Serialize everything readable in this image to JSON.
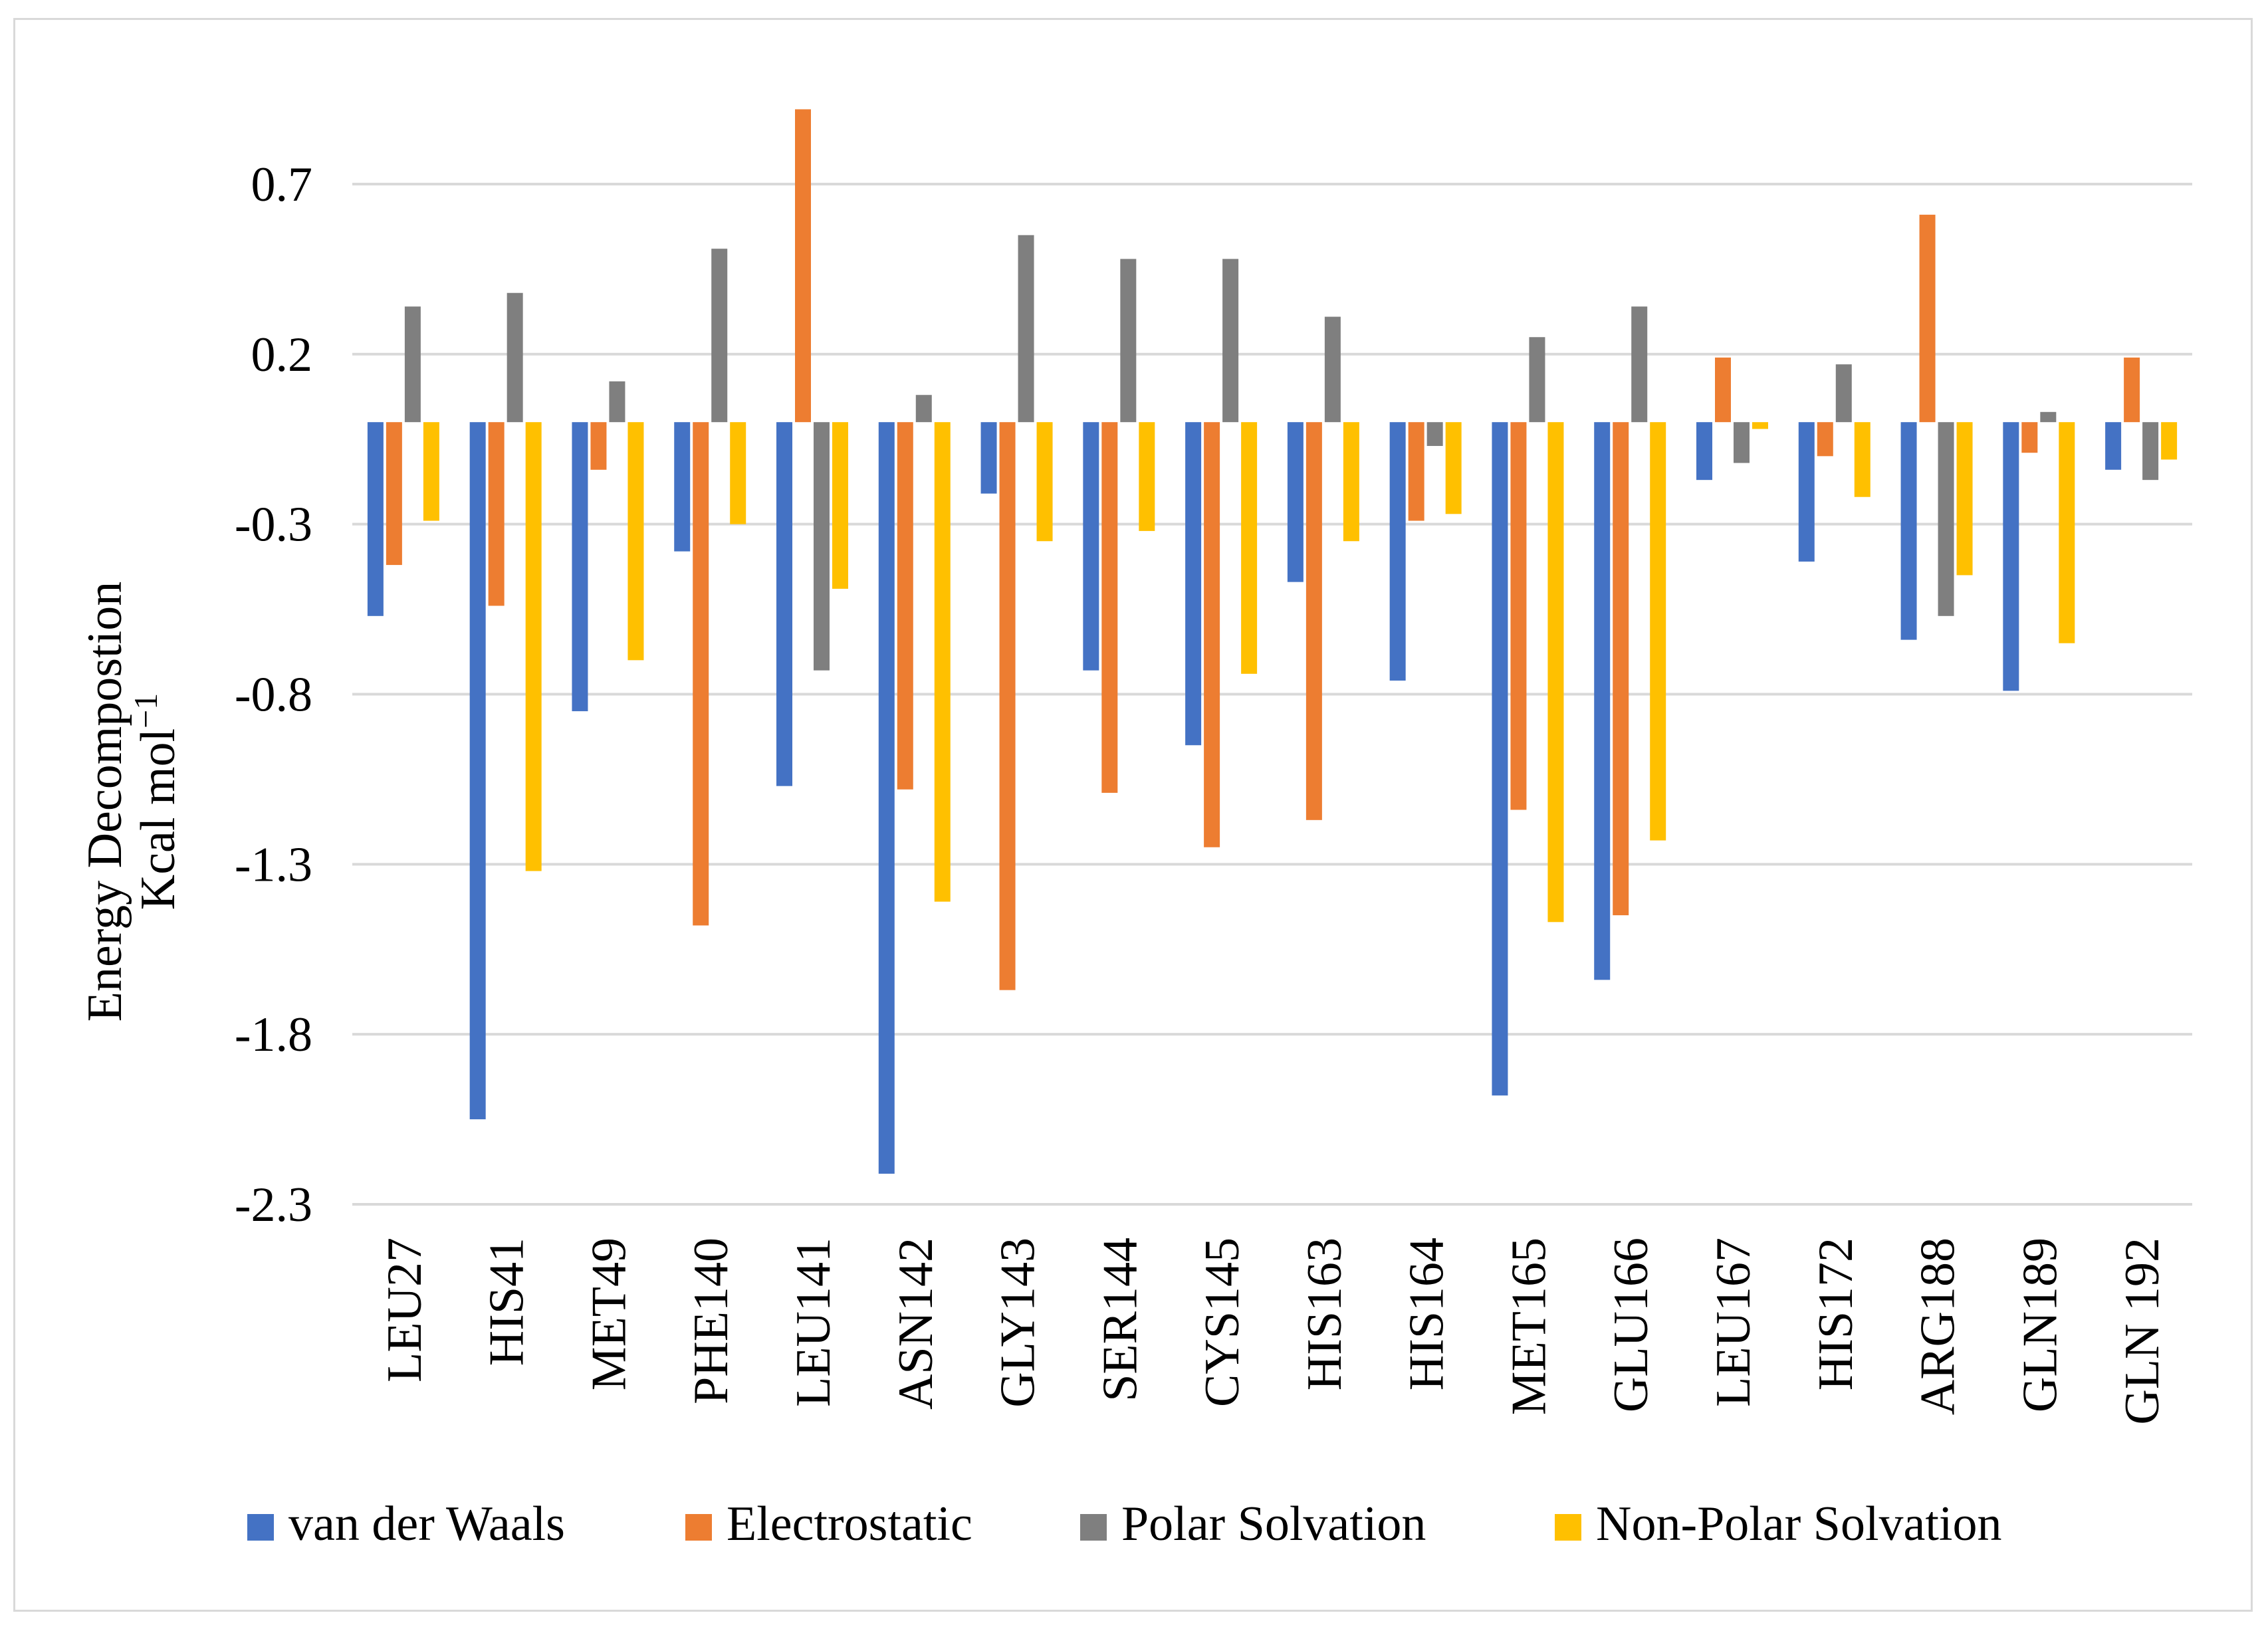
{
  "chart_data": {
    "type": "bar",
    "ylabel_line1": "Energy Decompostion",
    "ylabel_line2": "Kcal mol",
    "ylabel_sup": "−1",
    "ylim": [
      -2.3,
      1.0
    ],
    "yticks": [
      0.7,
      0.2,
      -0.3,
      -0.8,
      -1.3,
      -1.8,
      -2.3
    ],
    "ytick_labels": [
      "0.7",
      "0.2",
      "-0.3",
      "-0.8",
      "-1.3",
      "-1.8",
      "-2.3"
    ],
    "grid": true,
    "legend_position": "bottom",
    "categories": [
      "LEU27",
      "HIS41",
      "MET49",
      "PHE140",
      "LEU141",
      "ASN142",
      "GLY143",
      "SER144",
      "CYS145",
      "HIS163",
      "HIS164",
      "MET165",
      "GLU166",
      "LEU167",
      "HIS172",
      "ARG188",
      "GLN189",
      "GLN 192"
    ],
    "series": [
      {
        "name": "van der Waals",
        "color": "#4472c4",
        "values": [
          -0.57,
          -2.05,
          -0.85,
          -0.38,
          -1.07,
          -2.21,
          -0.21,
          -0.73,
          -0.95,
          -0.47,
          -0.76,
          -1.98,
          -1.64,
          -0.17,
          -0.41,
          -0.64,
          -0.79,
          -0.14
        ]
      },
      {
        "name": "Electrostatic",
        "color": "#ed7d31",
        "values": [
          -0.42,
          -0.54,
          -0.14,
          -1.48,
          0.92,
          -1.08,
          -1.67,
          -1.09,
          -1.25,
          -1.17,
          -0.29,
          -1.14,
          -1.45,
          0.19,
          -0.1,
          0.61,
          -0.09,
          0.19
        ]
      },
      {
        "name": "Polar Solvation",
        "color": "#7f7f7f",
        "values": [
          0.34,
          0.38,
          0.12,
          0.51,
          -0.73,
          0.08,
          0.55,
          0.48,
          0.48,
          0.31,
          -0.07,
          0.25,
          0.34,
          -0.12,
          0.17,
          -0.57,
          0.03,
          -0.17
        ]
      },
      {
        "name": "Non-Polar Solvation",
        "color": "#ffc000",
        "values": [
          -0.29,
          -1.32,
          -0.7,
          -0.3,
          -0.49,
          -1.41,
          -0.35,
          -0.32,
          -0.74,
          -0.35,
          -0.27,
          -1.47,
          -1.23,
          -0.02,
          -0.22,
          -0.45,
          -0.65,
          -0.11
        ]
      }
    ]
  }
}
